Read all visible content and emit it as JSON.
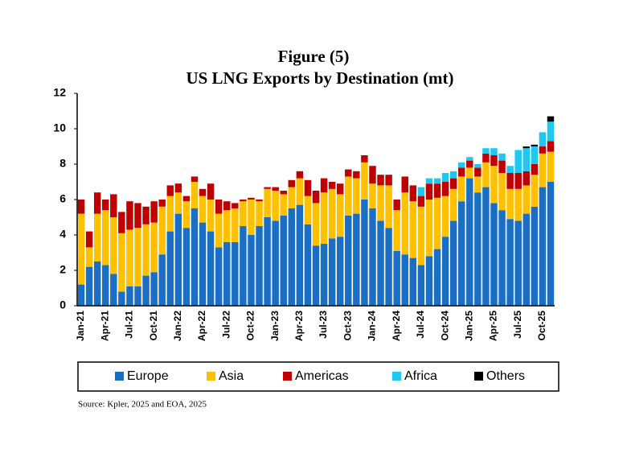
{
  "chart_data": {
    "type": "stacked_bar",
    "title": "Figure (5)",
    "subtitle": "US LNG Exports by Destination  (mt)",
    "source": "Source:  Kpler, 2025 and EOA, 2025",
    "categories": [
      "Jan-21",
      null,
      null,
      "Apr-21",
      null,
      null,
      "Jul-21",
      null,
      null,
      "Oct-21",
      null,
      null,
      "Jan-22",
      null,
      null,
      "Apr-22",
      null,
      null,
      "Jul-22",
      null,
      null,
      "Oct-22",
      null,
      null,
      "Jan-23",
      null,
      null,
      "Apr-23",
      null,
      null,
      "Jul-23",
      null,
      null,
      "Oct-23",
      null,
      null,
      "Jan-24",
      null,
      null,
      "Apr-24",
      null,
      null,
      "Jul-24",
      null,
      null,
      "Oct-24",
      null,
      null,
      "Jan-25",
      null,
      null,
      "Apr-25",
      null,
      null,
      "Jul-25",
      null,
      null,
      "Oct-25",
      null
    ],
    "series": [
      {
        "name": "Europe",
        "color": "#1a6fc4",
        "values": [
          1.2,
          2.2,
          2.5,
          2.3,
          1.8,
          0.8,
          1.1,
          1.1,
          1.7,
          1.9,
          2.9,
          4.2,
          5.2,
          4.4,
          5.5,
          4.7,
          4.2,
          3.3,
          3.6,
          3.6,
          4.5,
          4.0,
          4.5,
          5.0,
          4.8,
          5.1,
          5.5,
          5.7,
          4.6,
          3.4,
          3.5,
          3.8,
          3.9,
          5.1,
          5.2,
          6.0,
          5.5,
          4.8,
          4.4,
          3.1,
          2.9,
          2.7,
          2.3,
          2.8,
          3.2,
          3.9,
          4.8,
          5.9,
          7.2,
          6.4,
          6.7,
          5.8,
          5.4,
          4.9,
          4.8,
          5.2,
          5.6,
          6.7,
          7.0
        ]
      },
      {
        "name": "Asia",
        "color": "#ffc000",
        "values": [
          4.0,
          1.1,
          2.7,
          3.1,
          3.2,
          3.3,
          3.2,
          3.3,
          2.9,
          2.8,
          2.7,
          2.0,
          1.2,
          1.5,
          1.5,
          1.5,
          1.8,
          1.9,
          1.8,
          1.9,
          1.4,
          2.0,
          1.4,
          1.6,
          1.7,
          1.2,
          1.2,
          1.5,
          1.6,
          2.4,
          2.9,
          2.8,
          2.4,
          2.2,
          2.0,
          2.1,
          1.4,
          2.0,
          2.4,
          2.3,
          3.5,
          3.2,
          3.3,
          3.2,
          2.9,
          2.3,
          1.8,
          1.4,
          0.6,
          0.9,
          1.4,
          2.1,
          2.1,
          1.7,
          1.8,
          1.6,
          1.8,
          1.9,
          1.7
        ]
      },
      {
        "name": "Americas",
        "color": "#c00000",
        "values": [
          0.8,
          0.9,
          1.2,
          0.6,
          1.3,
          1.2,
          1.6,
          1.4,
          1.0,
          1.2,
          0.4,
          0.6,
          0.5,
          0.3,
          0.3,
          0.4,
          0.9,
          0.8,
          0.5,
          0.3,
          0.1,
          0.1,
          0.1,
          0.1,
          0.2,
          0.2,
          0.4,
          0.4,
          0.9,
          0.7,
          0.8,
          0.4,
          0.6,
          0.4,
          0.4,
          0.4,
          1.0,
          0.6,
          0.6,
          0.6,
          0.9,
          0.9,
          0.6,
          0.9,
          0.8,
          0.8,
          0.6,
          0.5,
          0.4,
          0.5,
          0.5,
          0.6,
          0.7,
          0.9,
          0.9,
          0.8,
          0.6,
          0.4,
          0.6
        ]
      },
      {
        "name": "Africa",
        "color": "#1ec8f0",
        "values": [
          0,
          0,
          0,
          0,
          0,
          0,
          0,
          0,
          0,
          0,
          0,
          0,
          0,
          0,
          0,
          0,
          0,
          0,
          0,
          0,
          0,
          0,
          0,
          0,
          0,
          0,
          0,
          0,
          0,
          0,
          0,
          0,
          0,
          0,
          0,
          0,
          0,
          0,
          0,
          0,
          0,
          0,
          0.5,
          0.3,
          0.3,
          0.5,
          0.4,
          0.3,
          0.2,
          0.2,
          0.3,
          0.4,
          0.4,
          0.4,
          1.3,
          1.3,
          1.0,
          0.8,
          1.1
        ]
      },
      {
        "name": "Others",
        "color": "#000000",
        "values": [
          0,
          0,
          0,
          0,
          0,
          0,
          0,
          0,
          0,
          0,
          0,
          0,
          0,
          0,
          0,
          0,
          0,
          0,
          0,
          0,
          0,
          0,
          0,
          0,
          0,
          0,
          0,
          0,
          0,
          0,
          0,
          0,
          0,
          0,
          0,
          0,
          0,
          0,
          0,
          0,
          0,
          0,
          0,
          0,
          0,
          0,
          0,
          0,
          0,
          0,
          0,
          0,
          0,
          0,
          0,
          0.1,
          0.1,
          0,
          0.3
        ]
      }
    ],
    "ylim": [
      0,
      12
    ],
    "yticks": [
      0,
      2,
      4,
      6,
      8,
      10,
      12
    ],
    "grid": false,
    "legend": "bottom"
  }
}
